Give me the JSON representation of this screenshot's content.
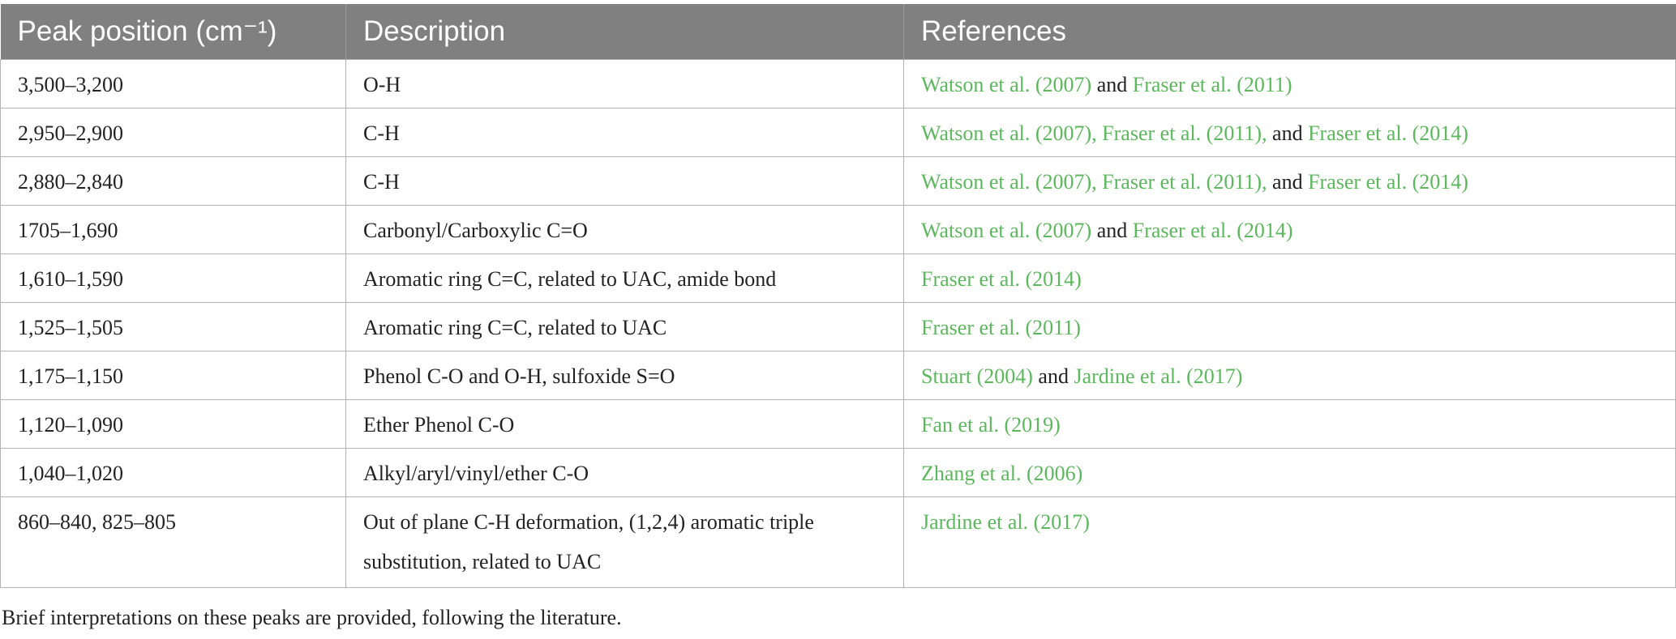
{
  "table": {
    "headers": [
      "Peak position (cm⁻¹)",
      "Description",
      "References"
    ],
    "rows": [
      {
        "peak": "3,500–3,200",
        "description": "O-H",
        "refs": [
          {
            "text": "Watson et al. (2007)",
            "link": true
          },
          {
            "text": " and ",
            "link": false
          },
          {
            "text": "Fraser et al. (2011)",
            "link": true
          }
        ]
      },
      {
        "peak": "2,950–2,900",
        "description": "C-H",
        "refs": [
          {
            "text": "Watson et al. (2007), Fraser et al. (2011),",
            "link": true
          },
          {
            "text": " and ",
            "link": false
          },
          {
            "text": "Fraser et al. (2014)",
            "link": true
          }
        ]
      },
      {
        "peak": "2,880–2,840",
        "description": "C-H",
        "refs": [
          {
            "text": "Watson et al. (2007), Fraser et al. (2011),",
            "link": true
          },
          {
            "text": " and ",
            "link": false
          },
          {
            "text": "Fraser et al. (2014)",
            "link": true
          }
        ]
      },
      {
        "peak": "1705–1,690",
        "description": "Carbonyl/Carboxylic C=O",
        "refs": [
          {
            "text": "Watson et al. (2007)",
            "link": true
          },
          {
            "text": " and ",
            "link": false
          },
          {
            "text": "Fraser et al. (2014)",
            "link": true
          }
        ]
      },
      {
        "peak": "1,610–1,590",
        "description": "Aromatic ring C=C, related to UAC, amide bond",
        "refs": [
          {
            "text": "Fraser et al. (2014)",
            "link": true
          }
        ]
      },
      {
        "peak": "1,525–1,505",
        "description": "Aromatic ring C=C, related to UAC",
        "refs": [
          {
            "text": "Fraser et al. (2011)",
            "link": true
          }
        ]
      },
      {
        "peak": "1,175–1,150",
        "description": "Phenol C-O and O-H, sulfoxide S=O",
        "refs": [
          {
            "text": "Stuart (2004)",
            "link": true
          },
          {
            "text": " and ",
            "link": false
          },
          {
            "text": "Jardine et al. (2017)",
            "link": true
          }
        ]
      },
      {
        "peak": "1,120–1,090",
        "description": "Ether Phenol C-O",
        "refs": [
          {
            "text": "Fan et al. (2019)",
            "link": true
          }
        ]
      },
      {
        "peak": "1,040–1,020",
        "description": "Alkyl/aryl/vinyl/ether C-O",
        "refs": [
          {
            "text": "Zhang et al. (2006)",
            "link": true
          }
        ]
      },
      {
        "peak": "860–840, 825–805",
        "description": "Out of plane C-H deformation, (1,2,4) aromatic triple substitution, related to UAC",
        "refs": [
          {
            "text": "Jardine et al. (2017)",
            "link": true
          }
        ]
      }
    ]
  },
  "footnote": "Brief interpretations on these peaks are provided, following the literature.",
  "colors": {
    "header_bg": "#808080",
    "link": "#5cb85c",
    "border": "#b3b3b3"
  }
}
